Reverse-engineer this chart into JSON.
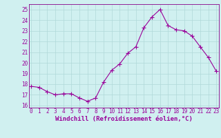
{
  "x": [
    0,
    1,
    2,
    3,
    4,
    5,
    6,
    7,
    8,
    9,
    10,
    11,
    12,
    13,
    14,
    15,
    16,
    17,
    18,
    19,
    20,
    21,
    22,
    23
  ],
  "y": [
    17.8,
    17.7,
    17.3,
    17.0,
    17.1,
    17.1,
    16.7,
    16.4,
    16.7,
    18.2,
    19.3,
    19.9,
    20.9,
    21.5,
    23.3,
    24.3,
    25.0,
    23.5,
    23.1,
    23.0,
    22.5,
    21.5,
    20.5,
    19.2
  ],
  "line_color": "#990099",
  "marker": "+",
  "marker_size": 4.0,
  "line_width": 0.8,
  "xlabel": "Windchill (Refroidissement éolien,°C)",
  "xlabel_fontsize": 6.5,
  "ylim": [
    15.8,
    25.5
  ],
  "yticks": [
    16,
    17,
    18,
    19,
    20,
    21,
    22,
    23,
    24,
    25
  ],
  "xticks": [
    0,
    1,
    2,
    3,
    4,
    5,
    6,
    7,
    8,
    9,
    10,
    11,
    12,
    13,
    14,
    15,
    16,
    17,
    18,
    19,
    20,
    21,
    22,
    23
  ],
  "tick_fontsize": 5.5,
  "bg_color": "#d0f0f0",
  "grid_color": "#b0d8d8",
  "grid_linewidth": 0.5,
  "spine_color": "#880088",
  "xlim_left": -0.3,
  "xlim_right": 23.3
}
